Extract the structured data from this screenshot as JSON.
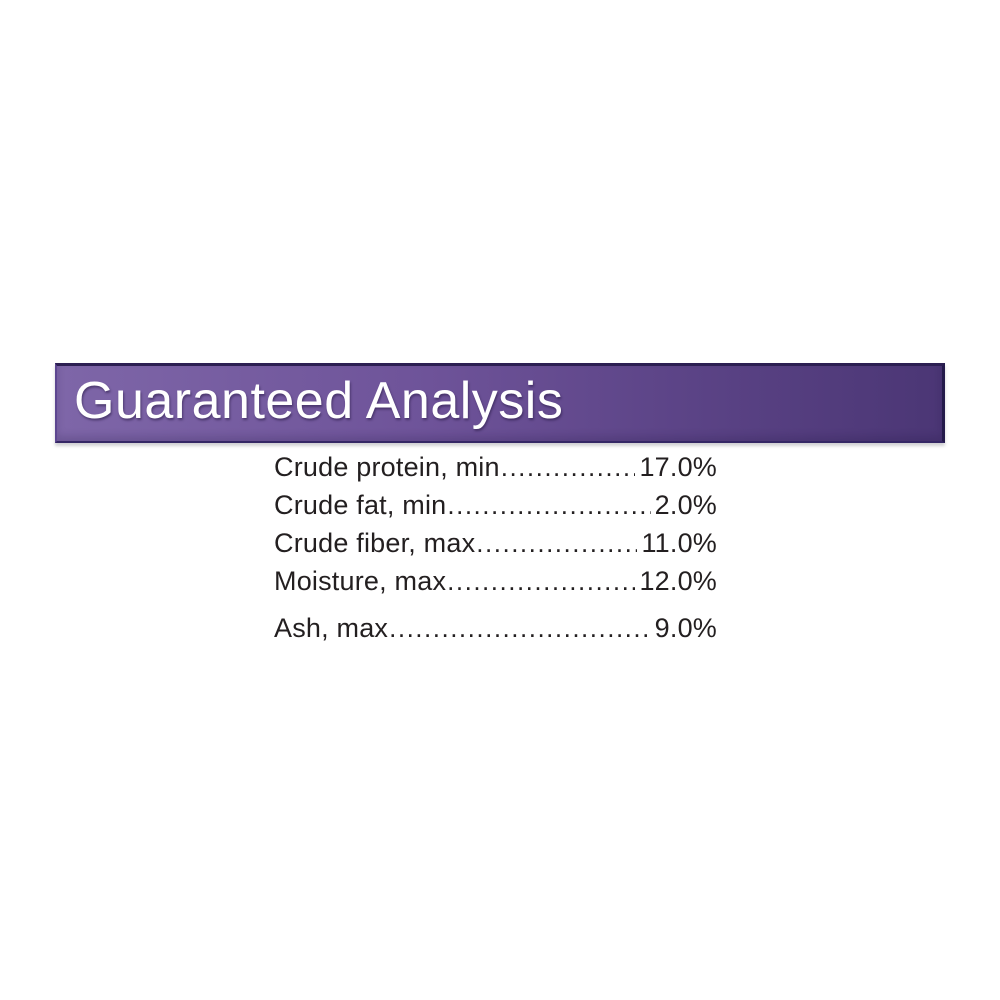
{
  "banner": {
    "title": "Guaranteed Analysis",
    "colors": {
      "gradient_left": "#7e66a8",
      "gradient_mid": "#6e5399",
      "gradient_right": "#4b3675",
      "border_dark": "#2c1f52",
      "title_text": "#ffffff"
    }
  },
  "analysis": {
    "text_color": "#231f20",
    "rows": [
      {
        "label": "Crude protein, min",
        "value": "17.0%"
      },
      {
        "label": "Crude fat, min",
        "value": "2.0%"
      },
      {
        "label": "Crude fiber, max",
        "value": "11.0%"
      },
      {
        "label": "Moisture, max",
        "value": "12.0%"
      },
      {
        "label": "Ash, max",
        "value": "9.0%"
      }
    ]
  }
}
